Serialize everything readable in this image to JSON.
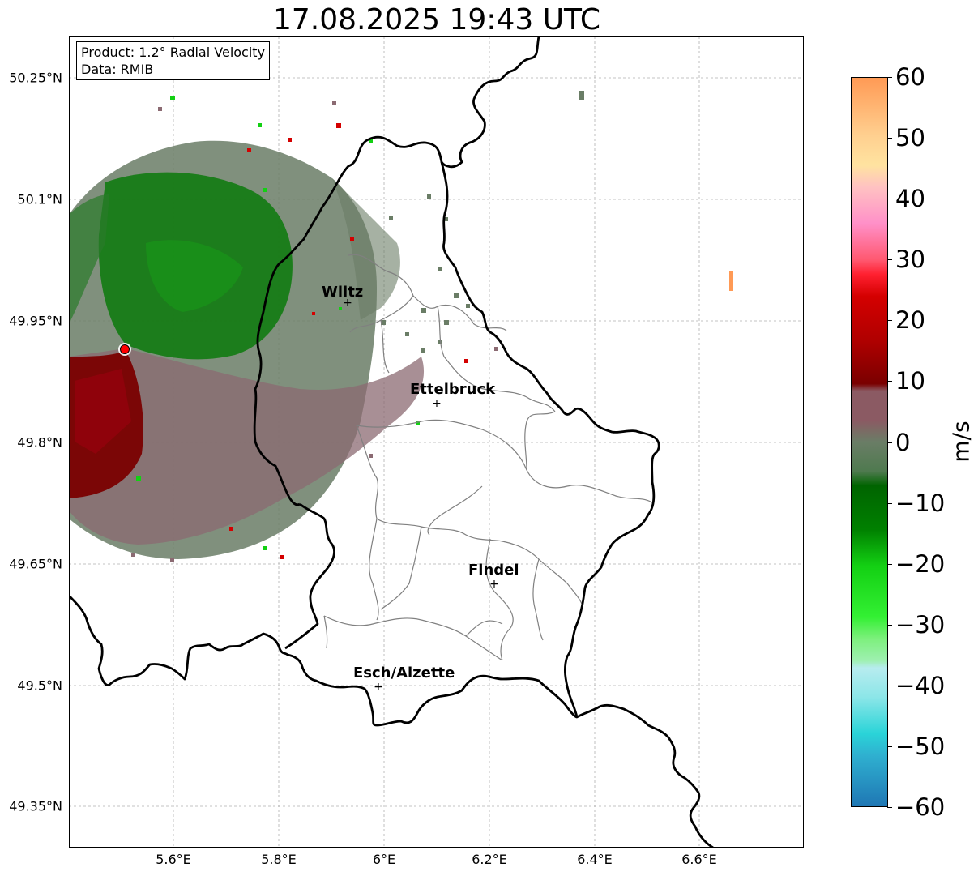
{
  "title": "17.08.2025 19:43 UTC",
  "info": {
    "product": "Product: 1.2° Radial Velocity",
    "data": "Data: RMIB"
  },
  "lat_ticks": [
    "50.25°N",
    "50.1°N",
    "49.95°N",
    "49.8°N",
    "49.65°N",
    "49.5°N",
    "49.35°N"
  ],
  "lon_ticks": [
    "5.6°E",
    "5.8°E",
    "6°E",
    "6.2°E",
    "6.4°E",
    "6.6°E"
  ],
  "cities": [
    "Wiltz",
    "Ettelbruck",
    "Findel",
    "Esch/Alzette"
  ],
  "colorbar": {
    "unit": "m/s",
    "ticks": [
      "60",
      "50",
      "40",
      "30",
      "20",
      "10",
      "0",
      "−10",
      "−20",
      "−30",
      "−40",
      "−50",
      "−60"
    ],
    "range": [
      -60,
      60
    ],
    "colors": {
      "neg_60": "#1f77b4",
      "neg_50": "#2ad4d8",
      "neg_40": "#b7ecef",
      "neg_30": "#7df07d",
      "neg_20": "#13d013",
      "neg_10": "#006400",
      "zero": "#6a7d66",
      "pos_5": "#8b5a63",
      "pos_10": "#7a0000",
      "pos_20": "#d40000",
      "pos_30": "#ff5870",
      "pos_40": "#ff90c8",
      "pos_50": "#ffd090",
      "pos_60": "#ff9a55"
    }
  },
  "radar_site_color": "#ff0000",
  "border_color": "#000000",
  "canton_color": "#808080"
}
